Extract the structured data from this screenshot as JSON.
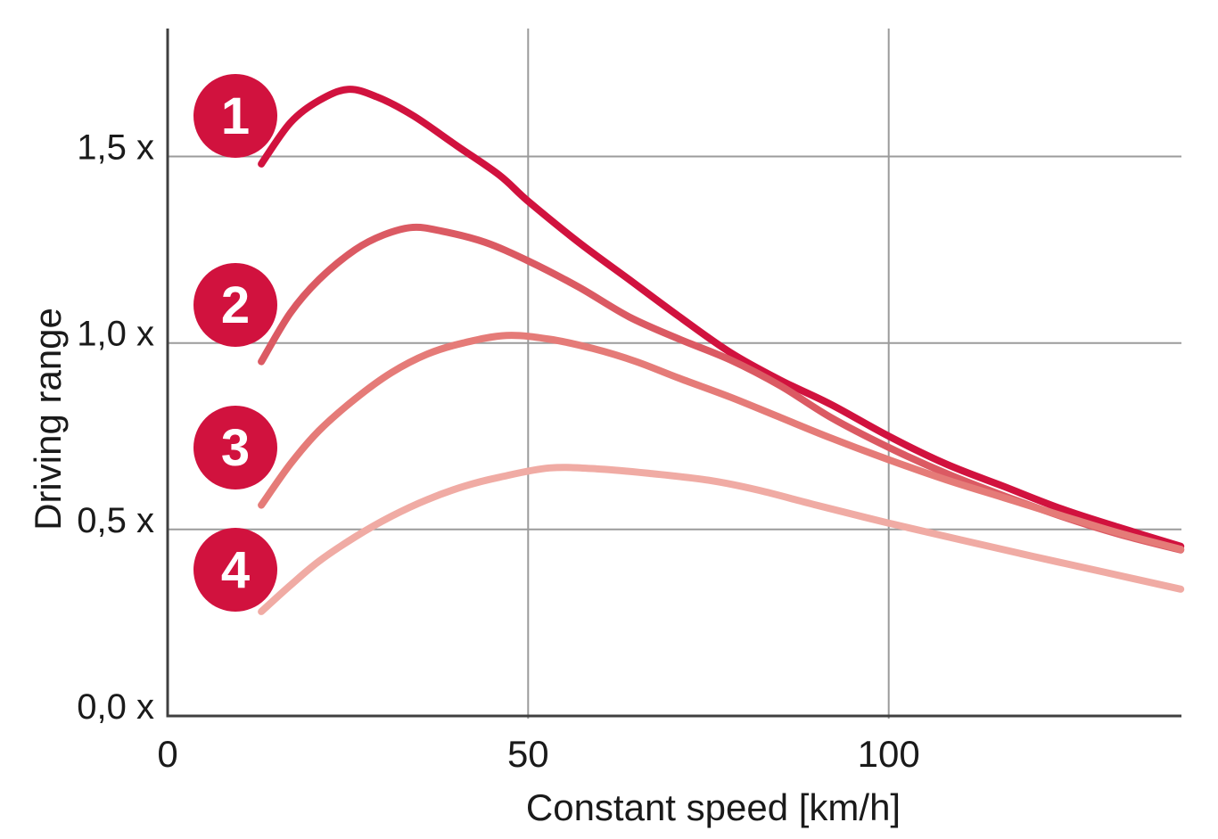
{
  "chart_data": {
    "type": "line",
    "xlabel": "Constant speed [km/h]",
    "ylabel": "Driving range",
    "xlim": [
      0,
      140.6
    ],
    "ylim": [
      0,
      1.843
    ],
    "grid": true,
    "legend_position": "badges-left",
    "x_ticks": [
      {
        "value": 0,
        "label": "0"
      },
      {
        "value": 50,
        "label": "50"
      },
      {
        "value": 100,
        "label": "100"
      }
    ],
    "y_ticks": [
      {
        "value": 0.0,
        "label": "0,0 x"
      },
      {
        "value": 0.5,
        "label": "0,5 x"
      },
      {
        "value": 1.0,
        "label": "1,0 x"
      },
      {
        "value": 1.5,
        "label": "1,5 x"
      }
    ],
    "series": [
      {
        "name": "1",
        "color": "#D1123E",
        "points": [
          [
            13,
            1.48
          ],
          [
            17,
            1.59
          ],
          [
            21,
            1.65
          ],
          [
            25,
            1.68
          ],
          [
            29,
            1.66
          ],
          [
            34,
            1.61
          ],
          [
            40,
            1.53
          ],
          [
            46,
            1.45
          ],
          [
            50,
            1.38
          ],
          [
            57,
            1.27
          ],
          [
            64,
            1.17
          ],
          [
            71,
            1.07
          ],
          [
            78,
            0.975
          ],
          [
            85,
            0.9
          ],
          [
            92,
            0.835
          ],
          [
            100,
            0.75
          ],
          [
            108,
            0.675
          ],
          [
            116,
            0.615
          ],
          [
            124,
            0.555
          ],
          [
            132,
            0.505
          ],
          [
            140.5,
            0.455
          ]
        ]
      },
      {
        "name": "2",
        "color": "#DB5A63",
        "points": [
          [
            13,
            0.95
          ],
          [
            17,
            1.08
          ],
          [
            21,
            1.17
          ],
          [
            26,
            1.25
          ],
          [
            30,
            1.29
          ],
          [
            34,
            1.31
          ],
          [
            38,
            1.3
          ],
          [
            44,
            1.27
          ],
          [
            50,
            1.22
          ],
          [
            57,
            1.15
          ],
          [
            64,
            1.07
          ],
          [
            71,
            1.01
          ],
          [
            78,
            0.955
          ],
          [
            85,
            0.885
          ],
          [
            92,
            0.8
          ],
          [
            100,
            0.72
          ],
          [
            108,
            0.65
          ],
          [
            116,
            0.59
          ],
          [
            124,
            0.535
          ],
          [
            132,
            0.487
          ],
          [
            140.5,
            0.445
          ]
        ]
      },
      {
        "name": "3",
        "color": "#E57B78",
        "points": [
          [
            13,
            0.565
          ],
          [
            17,
            0.675
          ],
          [
            21,
            0.765
          ],
          [
            26,
            0.85
          ],
          [
            31,
            0.92
          ],
          [
            36,
            0.97
          ],
          [
            41,
            1.0
          ],
          [
            47,
            1.02
          ],
          [
            53,
            1.01
          ],
          [
            59,
            0.985
          ],
          [
            65,
            0.95
          ],
          [
            71,
            0.905
          ],
          [
            78,
            0.855
          ],
          [
            85,
            0.8
          ],
          [
            92,
            0.745
          ],
          [
            100,
            0.687
          ],
          [
            108,
            0.633
          ],
          [
            116,
            0.585
          ],
          [
            124,
            0.537
          ],
          [
            132,
            0.49
          ],
          [
            140.5,
            0.447
          ]
        ]
      },
      {
        "name": "4",
        "color": "#F0ABA4",
        "points": [
          [
            13,
            0.28
          ],
          [
            17,
            0.35
          ],
          [
            21,
            0.415
          ],
          [
            26,
            0.48
          ],
          [
            31,
            0.535
          ],
          [
            36,
            0.58
          ],
          [
            41,
            0.615
          ],
          [
            46,
            0.64
          ],
          [
            53,
            0.665
          ],
          [
            60,
            0.662
          ],
          [
            67,
            0.65
          ],
          [
            75,
            0.632
          ],
          [
            82,
            0.605
          ],
          [
            90,
            0.565
          ],
          [
            100,
            0.517
          ],
          [
            110,
            0.472
          ],
          [
            120,
            0.428
          ],
          [
            130,
            0.385
          ],
          [
            140.5,
            0.34
          ]
        ]
      }
    ]
  },
  "colors": {
    "background": "#FFFFFF",
    "axis": "#3F3F3F",
    "grid": "#9B9B9B",
    "text": "#1A1A1A",
    "badge_fill": "#D1123E",
    "badge_text": "#FFFFFF"
  }
}
